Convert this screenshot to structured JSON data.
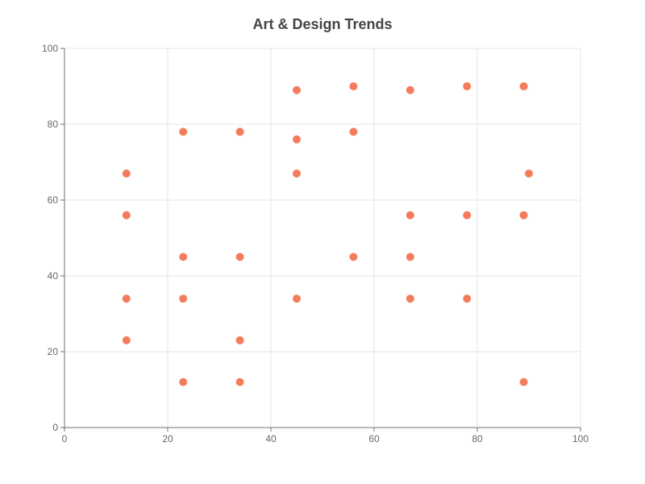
{
  "chart_data": {
    "type": "scatter",
    "title": "Art & Design Trends",
    "xlabel": "",
    "ylabel": "",
    "xlim": [
      0,
      100
    ],
    "ylim": [
      0,
      100
    ],
    "x_ticks": [
      0,
      20,
      40,
      60,
      80,
      100
    ],
    "y_ticks": [
      0,
      20,
      40,
      60,
      80,
      100
    ],
    "grid": true,
    "marker_color": "#f47c5c",
    "series": [
      {
        "points": [
          [
            12,
            67
          ],
          [
            12,
            56
          ],
          [
            12,
            34
          ],
          [
            12,
            23
          ],
          [
            23,
            78
          ],
          [
            23,
            45
          ],
          [
            23,
            34
          ],
          [
            23,
            12
          ],
          [
            34,
            78
          ],
          [
            34,
            45
          ],
          [
            34,
            23
          ],
          [
            34,
            12
          ],
          [
            45,
            89
          ],
          [
            45,
            76
          ],
          [
            45,
            67
          ],
          [
            45,
            34
          ],
          [
            56,
            90
          ],
          [
            56,
            78
          ],
          [
            56,
            45
          ],
          [
            67,
            89
          ],
          [
            67,
            56
          ],
          [
            67,
            45
          ],
          [
            67,
            34
          ],
          [
            78,
            90
          ],
          [
            78,
            56
          ],
          [
            78,
            34
          ],
          [
            89,
            90
          ],
          [
            89,
            56
          ],
          [
            89,
            12
          ],
          [
            90,
            67
          ]
        ]
      }
    ]
  }
}
